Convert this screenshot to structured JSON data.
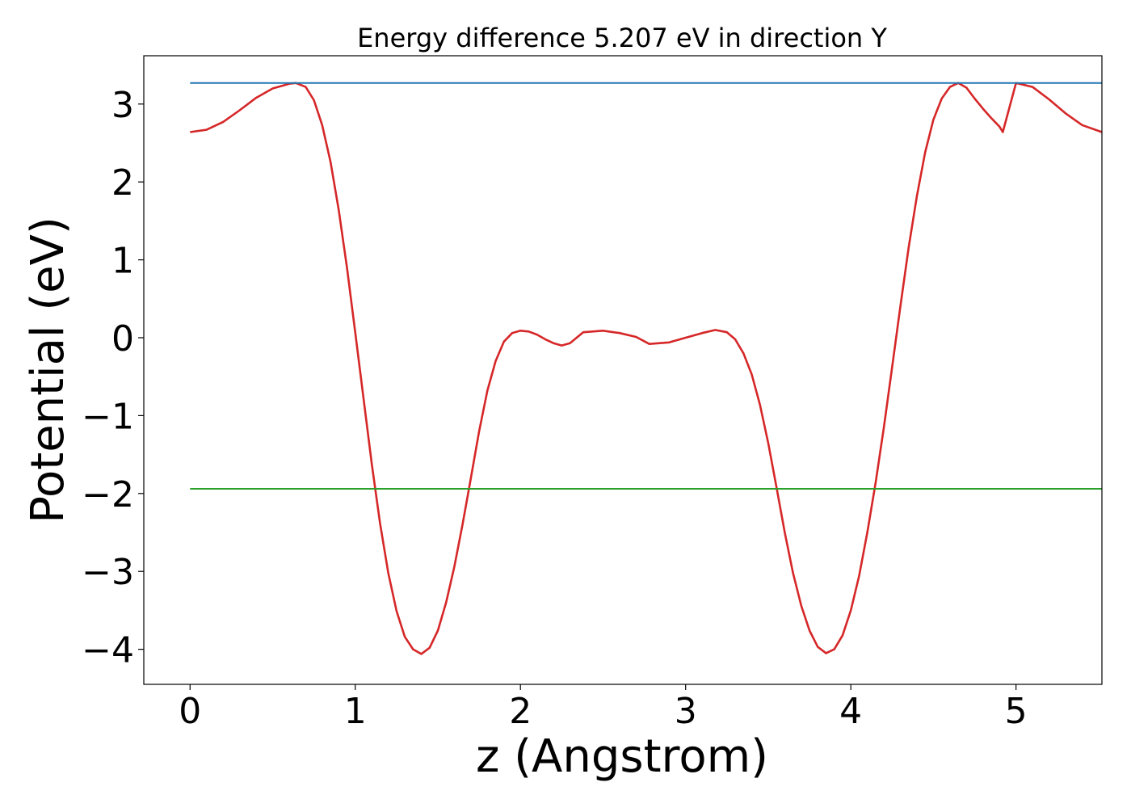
{
  "chart_data": {
    "type": "line",
    "title": "Energy difference 5.207 eV in direction Y",
    "xlabel": "z (Angstrom)",
    "ylabel": "Potential (eV)",
    "xlim": [
      -0.28,
      5.52
    ],
    "ylim": [
      -4.45,
      3.62
    ],
    "xticks": [
      0,
      1,
      2,
      3,
      4,
      5
    ],
    "xtick_labels": [
      "0",
      "1",
      "2",
      "3",
      "4",
      "5"
    ],
    "yticks": [
      -4,
      -3,
      -2,
      -1,
      0,
      1,
      2,
      3
    ],
    "ytick_labels": [
      "−4",
      "−3",
      "−2",
      "−1",
      "0",
      "1",
      "2",
      "3"
    ],
    "grid": false,
    "series": [
      {
        "color": "#d62728",
        "x": [
          0.0,
          0.1,
          0.2,
          0.3,
          0.4,
          0.5,
          0.6,
          0.64,
          0.7,
          0.75,
          0.8,
          0.85,
          0.9,
          0.95,
          1.0,
          1.05,
          1.1,
          1.15,
          1.2,
          1.25,
          1.3,
          1.35,
          1.4,
          1.45,
          1.5,
          1.55,
          1.6,
          1.65,
          1.7,
          1.75,
          1.8,
          1.85,
          1.9,
          1.95,
          2.0,
          2.05,
          2.1,
          2.15,
          2.2,
          2.25,
          2.3,
          2.38,
          2.5,
          2.6,
          2.7,
          2.78,
          2.9,
          3.0,
          3.1,
          3.18,
          3.25,
          3.3,
          3.35,
          3.4,
          3.45,
          3.5,
          3.55,
          3.6,
          3.65,
          3.7,
          3.75,
          3.8,
          3.85,
          3.9,
          3.95,
          4.0,
          4.05,
          4.1,
          4.15,
          4.2,
          4.25,
          4.3,
          4.35,
          4.4,
          4.45,
          4.5,
          4.55,
          4.6,
          4.65,
          4.7,
          4.75,
          4.8,
          4.85,
          4.9,
          4.92,
          5.0,
          5.1,
          5.2,
          5.3,
          5.4,
          5.52
        ],
        "y": [
          2.64,
          2.67,
          2.77,
          2.92,
          3.08,
          3.2,
          3.26,
          3.27,
          3.22,
          3.05,
          2.73,
          2.26,
          1.64,
          0.9,
          0.07,
          -0.78,
          -1.62,
          -2.38,
          -3.02,
          -3.51,
          -3.84,
          -4.0,
          -4.06,
          -3.98,
          -3.76,
          -3.4,
          -2.94,
          -2.39,
          -1.8,
          -1.2,
          -0.68,
          -0.3,
          -0.05,
          0.06,
          0.09,
          0.08,
          0.04,
          -0.02,
          -0.07,
          -0.1,
          -0.07,
          0.07,
          0.09,
          0.06,
          0.01,
          -0.08,
          -0.06,
          0.0,
          0.06,
          0.1,
          0.07,
          -0.02,
          -0.2,
          -0.47,
          -0.86,
          -1.35,
          -1.92,
          -2.5,
          -3.02,
          -3.44,
          -3.76,
          -3.97,
          -4.05,
          -4.0,
          -3.82,
          -3.5,
          -3.06,
          -2.5,
          -1.86,
          -1.15,
          -0.38,
          0.4,
          1.16,
          1.82,
          2.38,
          2.8,
          3.07,
          3.22,
          3.27,
          3.21,
          3.07,
          2.94,
          2.82,
          2.71,
          2.64,
          3.27,
          3.22,
          3.06,
          2.88,
          2.73,
          2.64
        ]
      },
      {
        "color": "#1f77b4",
        "x": [
          0.0,
          5.52
        ],
        "y": [
          3.27,
          3.27
        ]
      },
      {
        "color": "#2ca02c",
        "x": [
          0.0,
          5.52
        ],
        "y": [
          -1.94,
          -1.94
        ]
      }
    ]
  }
}
